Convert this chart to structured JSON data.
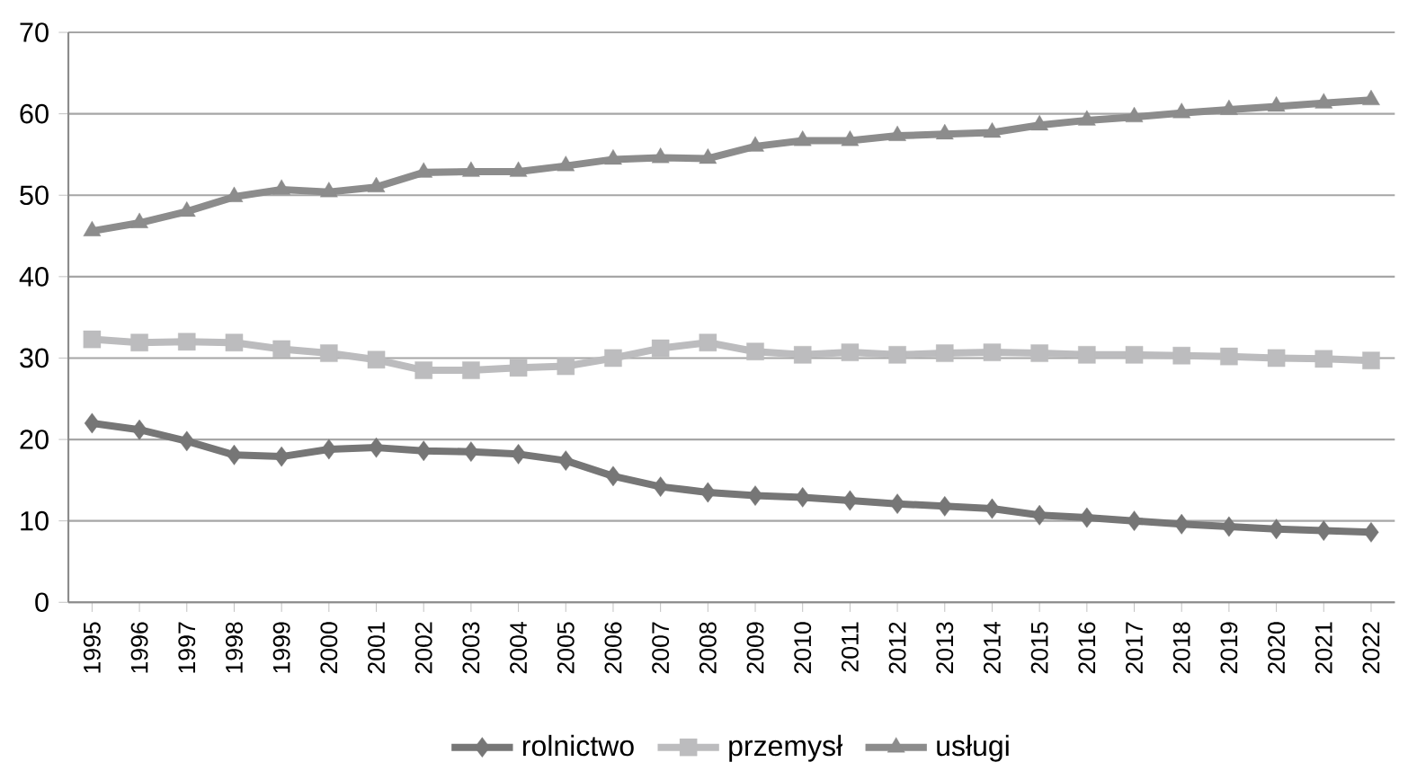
{
  "chart_data": {
    "type": "line",
    "categories": [
      "1995",
      "1996",
      "1997",
      "1998",
      "1999",
      "2000",
      "2001",
      "2002",
      "2003",
      "2004",
      "2005",
      "2006",
      "2007",
      "2008",
      "2009",
      "2010",
      "2011",
      "2012",
      "2013",
      "2014",
      "2015",
      "2016",
      "2017",
      "2018",
      "2019",
      "2020",
      "2021",
      "2022"
    ],
    "series": [
      {
        "name": "rolnictwo",
        "color": "#767676",
        "marker": "diamond",
        "values": [
          22.0,
          21.2,
          19.8,
          18.1,
          17.9,
          18.8,
          19.0,
          18.6,
          18.5,
          18.2,
          17.4,
          15.5,
          14.2,
          13.5,
          13.1,
          12.9,
          12.5,
          12.1,
          11.8,
          11.5,
          10.7,
          10.4,
          10.0,
          9.6,
          9.3,
          9.0,
          8.8,
          8.6
        ]
      },
      {
        "name": "przemysł",
        "color": "#bcbcbe",
        "marker": "square",
        "values": [
          32.3,
          31.9,
          32.0,
          31.9,
          31.1,
          30.6,
          29.8,
          28.5,
          28.5,
          28.8,
          29.0,
          30.0,
          31.2,
          31.9,
          30.8,
          30.4,
          30.7,
          30.4,
          30.6,
          30.7,
          30.6,
          30.4,
          30.4,
          30.3,
          30.2,
          30.0,
          29.9,
          29.7
        ]
      },
      {
        "name": "usługi",
        "color": "#8c8c8c",
        "marker": "triangle",
        "values": [
          45.6,
          46.6,
          48.0,
          49.8,
          50.7,
          50.4,
          51.0,
          52.8,
          52.9,
          52.9,
          53.6,
          54.4,
          54.6,
          54.5,
          56.0,
          56.7,
          56.7,
          57.3,
          57.5,
          57.7,
          58.6,
          59.2,
          59.6,
          60.1,
          60.5,
          60.9,
          61.3,
          61.7
        ]
      }
    ],
    "ylim": [
      0,
      70
    ],
    "yticks": [
      0,
      10,
      20,
      30,
      40,
      50,
      60,
      70
    ],
    "grid": "y",
    "legend": "bottom",
    "line_style": "solid"
  }
}
